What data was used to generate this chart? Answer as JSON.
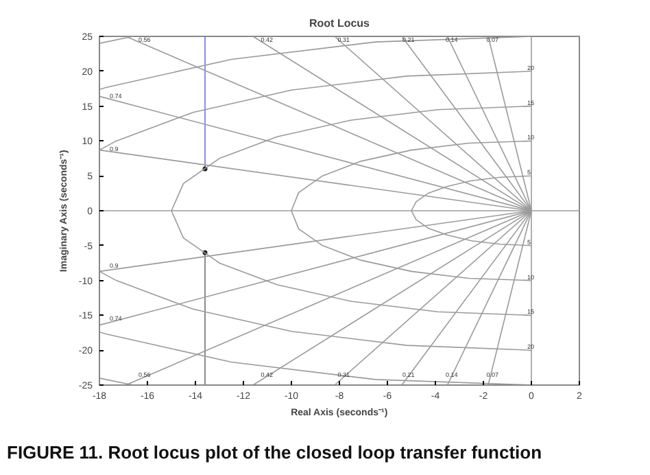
{
  "chart_data": {
    "type": "line",
    "title": "Root Locus",
    "xlabel": "Real Axis (seconds⁻¹)",
    "ylabel": "Imaginary Axis (seconds⁻¹)",
    "xlim": [
      -18,
      2
    ],
    "xticks": [
      -18,
      -16,
      -14,
      -12,
      -10,
      -8,
      -6,
      -4,
      -2,
      0,
      2
    ],
    "ylim": [
      -25,
      25
    ],
    "yticks": [
      -25,
      -20,
      -15,
      -10,
      -5,
      0,
      5,
      10,
      15,
      20,
      25
    ],
    "grid": false,
    "line_style": "solid",
    "marker": "none",
    "series": [
      {
        "color": "#6f6fe8",
        "x": [
          -13.6,
          -13.6
        ],
        "values": [
          6,
          25
        ]
      },
      {
        "color": "#707070",
        "x": [
          -13.6,
          -13.6
        ],
        "values": [
          -6,
          -25
        ]
      },
      {
        "type": "scatter",
        "marker": "circle",
        "color": "#202020",
        "x": [
          -13.6,
          -13.6
        ],
        "values": [
          6,
          -6
        ]
      },
      {
        "color": "#9a9a9a",
        "x": [
          -18,
          2
        ],
        "values": [
          0,
          0
        ]
      },
      {
        "color": "#9a9a9a",
        "x": [
          0,
          0
        ],
        "values": [
          -25,
          25
        ]
      },
      {
        "color": "#9a9a9a",
        "x": [
          0,
          -1.8
        ],
        "values": [
          0,
          25
        ]
      },
      {
        "color": "#9a9a9a",
        "x": [
          0,
          -1.8
        ],
        "values": [
          0,
          -25
        ]
      },
      {
        "color": "#9a9a9a",
        "x": [
          0,
          -3.5
        ],
        "values": [
          0,
          25
        ]
      },
      {
        "color": "#9a9a9a",
        "x": [
          0,
          -3.5
        ],
        "values": [
          0,
          -25
        ]
      },
      {
        "color": "#9a9a9a",
        "x": [
          0,
          -5.4
        ],
        "values": [
          0,
          25
        ]
      },
      {
        "color": "#9a9a9a",
        "x": [
          0,
          -5.4
        ],
        "values": [
          0,
          -25
        ]
      },
      {
        "color": "#9a9a9a",
        "x": [
          0,
          -8.2
        ],
        "values": [
          0,
          25
        ]
      },
      {
        "color": "#9a9a9a",
        "x": [
          0,
          -8.2
        ],
        "values": [
          0,
          -25
        ]
      },
      {
        "color": "#9a9a9a",
        "x": [
          0,
          -11.6
        ],
        "values": [
          0,
          25
        ]
      },
      {
        "color": "#9a9a9a",
        "x": [
          0,
          -11.6
        ],
        "values": [
          0,
          -25
        ]
      },
      {
        "color": "#9a9a9a",
        "x": [
          0,
          -16.9
        ],
        "values": [
          0,
          25
        ]
      },
      {
        "color": "#9a9a9a",
        "x": [
          0,
          -16.9
        ],
        "values": [
          0,
          -25
        ]
      },
      {
        "color": "#9a9a9a",
        "x": [
          0,
          -18
        ],
        "values": [
          0,
          16.4
        ]
      },
      {
        "color": "#9a9a9a",
        "x": [
          0,
          -18
        ],
        "values": [
          0,
          -16.4
        ]
      },
      {
        "color": "#9a9a9a",
        "x": [
          0,
          -18
        ],
        "values": [
          0,
          8.7
        ]
      },
      {
        "color": "#9a9a9a",
        "x": [
          0,
          -18
        ],
        "values": [
          0,
          -8.7
        ]
      },
      {
        "color": "#9a9a9a",
        "x": [
          0,
          -1.3,
          -2.5,
          -3.5,
          -4.3,
          -4.8,
          -5,
          -4.8,
          -4.3,
          -3.5,
          -2.5,
          -1.3,
          0
        ],
        "values": [
          5,
          4.8,
          4.3,
          3.5,
          2.5,
          1.3,
          0,
          -1.3,
          -2.5,
          -3.5,
          -4.3,
          -4.8,
          -5
        ]
      },
      {
        "color": "#9a9a9a",
        "x": [
          0,
          -2.6,
          -5,
          -7.1,
          -8.7,
          -9.7,
          -10,
          -9.7,
          -8.7,
          -7.1,
          -5,
          -2.6,
          0
        ],
        "values": [
          10,
          9.7,
          8.7,
          7.1,
          5,
          2.6,
          0,
          -2.6,
          -5,
          -7.1,
          -8.7,
          -9.7,
          -10
        ]
      },
      {
        "color": "#9a9a9a",
        "x": [
          0,
          -3.9,
          -7.5,
          -10.6,
          -13,
          -14.5,
          -15,
          -14.5,
          -13,
          -10.6,
          -7.5,
          -3.9,
          0
        ],
        "values": [
          15,
          14.5,
          13,
          10.6,
          7.5,
          3.9,
          0,
          -3.9,
          -7.5,
          -10.6,
          -13,
          -14.5,
          -15
        ]
      },
      {
        "color": "#9a9a9a",
        "x": [
          0,
          -5.2,
          -10,
          -14.1,
          -17.3,
          -18
        ],
        "values": [
          20,
          19.3,
          17.3,
          14.1,
          10,
          8.7
        ]
      },
      {
        "color": "#9a9a9a",
        "x": [
          -18,
          -17.3,
          -14.1,
          -10,
          -5.2,
          0
        ],
        "values": [
          -8.7,
          -10,
          -14.1,
          -17.3,
          -19.3,
          -20
        ]
      },
      {
        "color": "#9a9a9a",
        "x": [
          0,
          -6.5,
          -12.5,
          -17.7,
          -18
        ],
        "values": [
          25,
          24.2,
          21.7,
          17.7,
          17.4
        ]
      },
      {
        "color": "#9a9a9a",
        "x": [
          -18,
          -17.7,
          -12.5,
          -6.5,
          0
        ],
        "values": [
          -17.4,
          -17.7,
          -21.7,
          -24.2,
          -25
        ]
      },
      {
        "color": "#9a9a9a",
        "x": [
          -16.6,
          -18
        ],
        "values": [
          25,
          24
        ]
      },
      {
        "color": "#9a9a9a",
        "x": [
          -18,
          -16.6
        ],
        "values": [
          -24,
          -25
        ]
      }
    ],
    "annotations": [
      {
        "text": "0.07",
        "x": -1.7,
        "y": 24
      },
      {
        "text": "0.14",
        "x": -3.4,
        "y": 24
      },
      {
        "text": "0.21",
        "x": -5.2,
        "y": 24
      },
      {
        "text": "0.31",
        "x": -7.9,
        "y": 24
      },
      {
        "text": "0.42",
        "x": -11.1,
        "y": 24
      },
      {
        "text": "0.56",
        "x": -16.2,
        "y": 24
      },
      {
        "text": "0.74",
        "x": -17.4,
        "y": 15.9
      },
      {
        "text": "0.9",
        "x": -17.4,
        "y": 8.4
      },
      {
        "text": "0.07",
        "x": -1.7,
        "y": -24
      },
      {
        "text": "0.14",
        "x": -3.4,
        "y": -24
      },
      {
        "text": "0.21",
        "x": -5.2,
        "y": -24
      },
      {
        "text": "0.31",
        "x": -7.9,
        "y": -24
      },
      {
        "text": "0.42",
        "x": -11.1,
        "y": -24
      },
      {
        "text": "0.56",
        "x": -16.2,
        "y": -24
      },
      {
        "text": "0.74",
        "x": -17.4,
        "y": -15.9
      },
      {
        "text": "0.9",
        "x": -17.4,
        "y": -8.4
      },
      {
        "text": "5",
        "x": 0,
        "y": 5
      },
      {
        "text": "10",
        "x": 0,
        "y": 10
      },
      {
        "text": "15",
        "x": 0,
        "y": 15
      },
      {
        "text": "20",
        "x": 0,
        "y": 20
      },
      {
        "text": "5",
        "x": 0,
        "y": -5
      },
      {
        "text": "10",
        "x": 0,
        "y": -10
      },
      {
        "text": "15",
        "x": 0,
        "y": -15
      },
      {
        "text": "20",
        "x": 0,
        "y": -20
      },
      "FIGURE 11. Root locus plot of the closed loop transfer function"
    ]
  }
}
